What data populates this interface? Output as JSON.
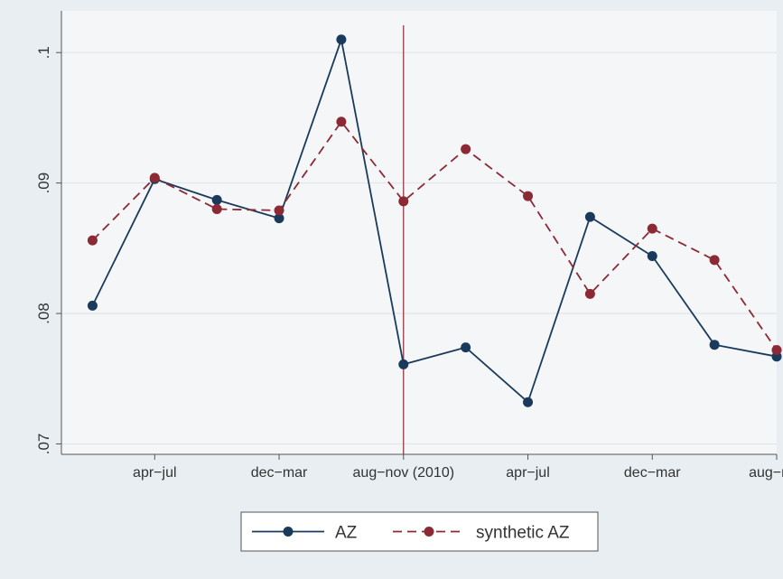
{
  "chart_data": {
    "type": "line",
    "x_tick_labels": [
      "apr−jul",
      "dec−mar",
      "aug−nov (2010)",
      "apr−jul",
      "dec−mar",
      "aug−nov"
    ],
    "y_tick_labels": [
      ".07",
      ".08",
      ".09",
      ".1"
    ],
    "y_ticks": [
      0.07,
      0.08,
      0.09,
      0.1
    ],
    "ylim": [
      0.0692,
      0.1032
    ],
    "xlim": [
      0.5,
      12.0
    ],
    "x": [
      1,
      2,
      3,
      4,
      5,
      6,
      7,
      8,
      9,
      10,
      11,
      12
    ],
    "x_tick_positions": [
      2,
      4,
      6,
      8,
      10,
      12
    ],
    "reference_line_x": 6,
    "grid": true,
    "legend_position": "bottom",
    "series": [
      {
        "name": "AZ",
        "color": "#1a3a5c",
        "dash": "solid",
        "values": [
          0.0806,
          0.0903,
          0.0887,
          0.0873,
          0.101,
          0.0761,
          0.0774,
          0.0732,
          0.0874,
          0.0844,
          0.0776,
          0.0767
        ]
      },
      {
        "name": "synthetic AZ",
        "color": "#8b2a35",
        "dash": "dashed",
        "values": [
          0.0856,
          0.0904,
          0.088,
          0.0879,
          0.0947,
          0.0886,
          0.0926,
          0.089,
          0.0815,
          0.0865,
          0.0841,
          0.0772
        ]
      }
    ],
    "reference_line_color": "#8b2a35",
    "plot_background": "#f4f6f8",
    "outer_background": "#e8eef2",
    "grid_color": "#dde3e8"
  }
}
